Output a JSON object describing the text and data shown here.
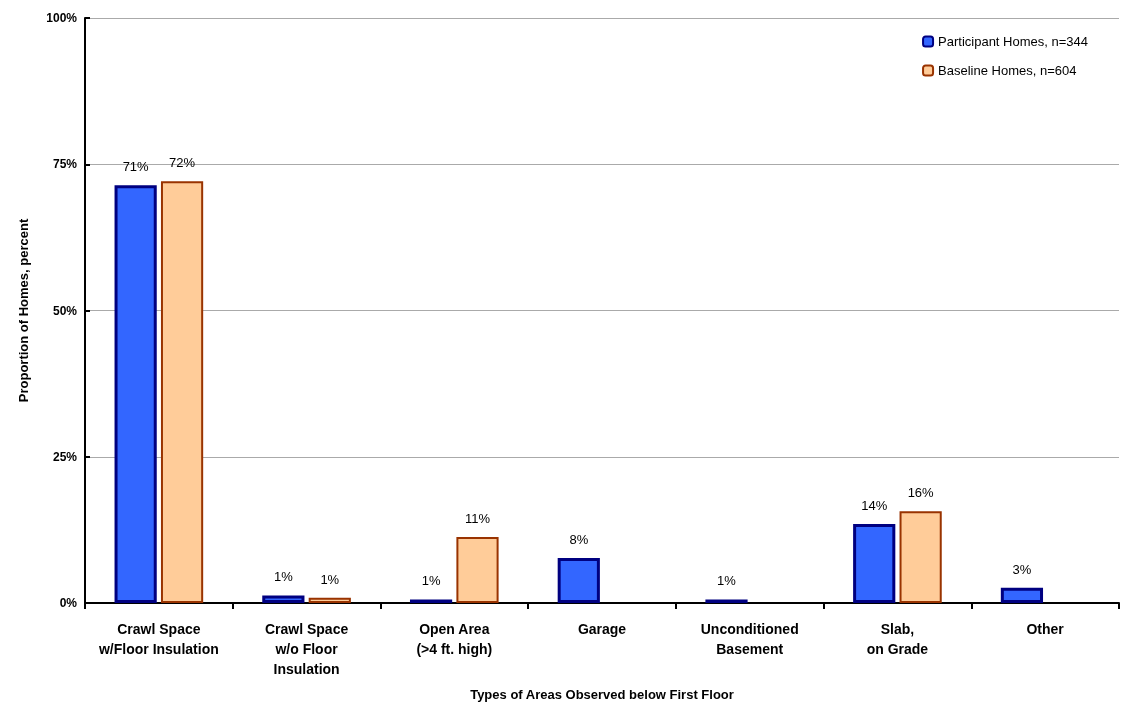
{
  "chart_data": {
    "type": "bar",
    "xlabel": "Types of Areas Observed below First Floor",
    "ylabel": "Proportion of Homes, percent",
    "categories": [
      "Crawl Space\nw/Floor Insulation",
      "Crawl Space\nw/o Floor\nInsulation",
      "Open Area\n(>4 ft. high)",
      "Garage",
      "Unconditioned\nBasement",
      "Slab,\non Grade",
      "Other"
    ],
    "series": [
      {
        "name": "Participant Homes, n=344",
        "color": "#3366ff",
        "values": [
          71.4,
          1.3,
          0.6,
          7.7,
          0.6,
          13.5,
          2.6
        ],
        "value_labels": [
          "71%",
          "1%",
          "1%",
          "8%",
          "1%",
          "14%",
          "3%"
        ]
      },
      {
        "name": "Baseline Homes, n=604",
        "color": "#ffcc99",
        "values": [
          72.1,
          0.9,
          11.3,
          null,
          null,
          15.7,
          null
        ],
        "value_labels": [
          "72%",
          "1%",
          "11%",
          null,
          null,
          "16%",
          null
        ]
      }
    ],
    "ylim": [
      0,
      100
    ],
    "yticks": [
      {
        "value": 0,
        "label": "0%"
      },
      {
        "value": 25,
        "label": "25%"
      },
      {
        "value": 50,
        "label": "50%"
      },
      {
        "value": 75,
        "label": "75%"
      },
      {
        "value": 100,
        "label": "100%"
      }
    ],
    "grid": "y",
    "legend": "top right"
  }
}
